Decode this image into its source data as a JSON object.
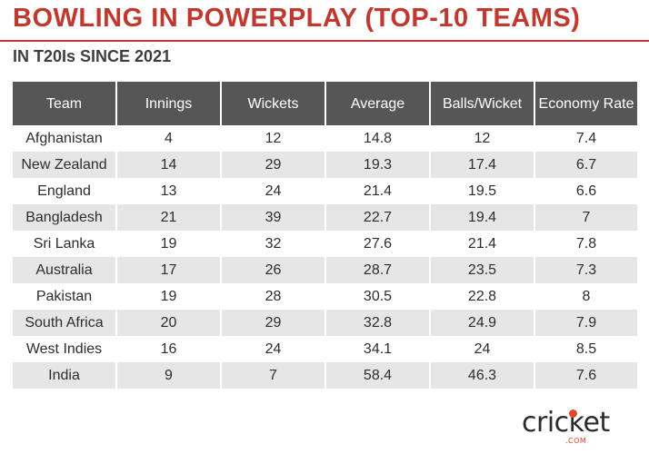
{
  "title": "BOWLING IN POWERPLAY (TOP-10 TEAMS)",
  "subtitle": "IN T20Is SINCE 2021",
  "colors": {
    "accent": "#c0392f",
    "header_bg": "#565656",
    "stripe_bg": "#e6e6e6"
  },
  "logo": {
    "text": "cricket",
    "suffix": ".COM"
  },
  "chart_data": {
    "type": "table",
    "title": "BOWLING IN POWERPLAY (TOP-10 TEAMS)",
    "subtitle": "IN T20Is SINCE 2021",
    "columns": [
      "Team",
      "Innings",
      "Wickets",
      "Average",
      "Balls/Wicket",
      "Economy Rate"
    ],
    "rows": [
      [
        "Afghanistan",
        "4",
        "12",
        "14.8",
        "12",
        "7.4"
      ],
      [
        "New Zealand",
        "14",
        "29",
        "19.3",
        "17.4",
        "6.7"
      ],
      [
        "England",
        "13",
        "24",
        "21.4",
        "19.5",
        "6.6"
      ],
      [
        "Bangladesh",
        "21",
        "39",
        "22.7",
        "19.4",
        "7"
      ],
      [
        "Sri Lanka",
        "19",
        "32",
        "27.6",
        "21.4",
        "7.8"
      ],
      [
        "Australia",
        "17",
        "26",
        "28.7",
        "23.5",
        "7.3"
      ],
      [
        "Pakistan",
        "19",
        "28",
        "30.5",
        "22.8",
        "8"
      ],
      [
        "South Africa",
        "20",
        "29",
        "32.8",
        "24.9",
        "7.9"
      ],
      [
        "West Indies",
        "16",
        "24",
        "34.1",
        "24",
        "8.5"
      ],
      [
        "India",
        "9",
        "7",
        "58.4",
        "46.3",
        "7.6"
      ]
    ]
  }
}
